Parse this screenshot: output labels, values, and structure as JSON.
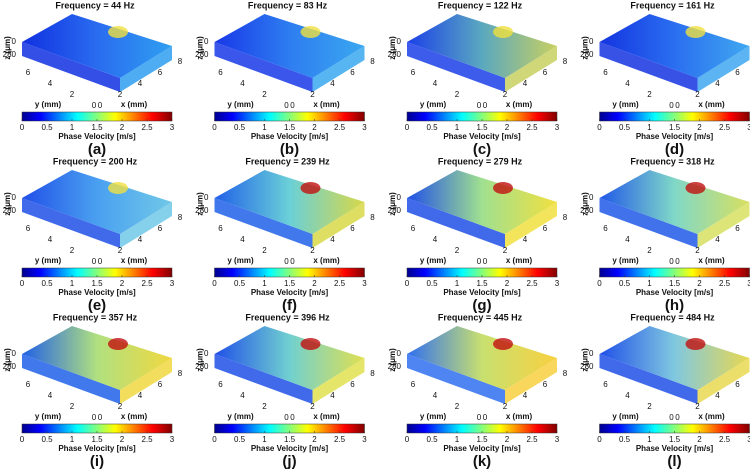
{
  "panels": [
    {
      "title": "Frequency = 44 Hz",
      "label": "(a)"
    },
    {
      "title": "Frequency = 83 Hz",
      "label": "(b)"
    },
    {
      "title": "Frequency = 122 Hz",
      "label": "(c)"
    },
    {
      "title": "Frequency = 161 Hz",
      "label": "(d)"
    },
    {
      "title": "Frequency = 200 Hz",
      "label": "(e)"
    },
    {
      "title": "Frequency = 239 Hz",
      "label": "(f)"
    },
    {
      "title": "Frequency = 279 Hz",
      "label": "(g)"
    },
    {
      "title": "Frequency = 318 Hz",
      "label": "(h)"
    },
    {
      "title": "Frequency = 357 Hz",
      "label": "(i)"
    },
    {
      "title": "Frequency = 396 Hz",
      "label": "(j)"
    },
    {
      "title": "Frequency = 445 Hz",
      "label": "(k)"
    },
    {
      "title": "Frequency = 484 Hz",
      "label": "(l)"
    }
  ],
  "axes": {
    "z_label": "z (μm)",
    "z_ticks": [
      0,
      280
    ],
    "y_label": "y (mm)",
    "y_ticks": [
      0,
      2,
      4,
      6
    ],
    "x_label": "x (mm)",
    "x_ticks": [
      0,
      2,
      4,
      6,
      8
    ]
  },
  "colorbar": {
    "label": "Phase Velocity [m/s]",
    "range": [
      0,
      3
    ],
    "ticks": [
      0,
      0.5,
      1,
      1.5,
      2,
      2.5,
      3
    ]
  }
}
